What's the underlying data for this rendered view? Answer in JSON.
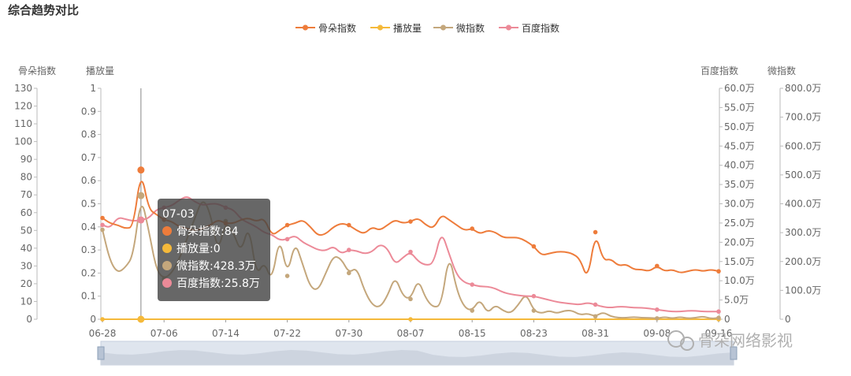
{
  "chart_data": {
    "type": "line",
    "title": "综合趋势对比",
    "legend": {
      "position": "top-center",
      "items": [
        {
          "name": "骨朵指数",
          "color": "#ee7c3b"
        },
        {
          "name": "播放量",
          "color": "#f5b93a"
        },
        {
          "name": "微指数",
          "color": "#c4a77c"
        },
        {
          "name": "百度指数",
          "color": "#ec8a98"
        }
      ]
    },
    "axes": {
      "gudu": {
        "label": "骨朵指数",
        "min": 0,
        "max": 130,
        "step": 10,
        "ticks": [
          "0",
          "10",
          "20",
          "30",
          "40",
          "50",
          "60",
          "70",
          "80",
          "90",
          "100",
          "110",
          "120",
          "130"
        ]
      },
      "play": {
        "label": "播放量",
        "min": 0,
        "max": 1,
        "ticks": [
          "0",
          "0.1",
          "0.2",
          "0.3",
          "0.4",
          "0.5",
          "0.6",
          "0.7",
          "0.8",
          "0.9",
          "1"
        ]
      },
      "baidu": {
        "label": "百度指数",
        "min": 0,
        "max": 600000,
        "ticks": [
          "0",
          "5.0万",
          "10.0万",
          "15.0万",
          "20.0万",
          "25.0万",
          "30.0万",
          "35.0万",
          "40.0万",
          "45.0万",
          "50.0万",
          "55.0万",
          "60.0万"
        ]
      },
      "weibo": {
        "label": "微指数",
        "min": 0,
        "max": 8000000,
        "ticks": [
          "0",
          "100.0万",
          "200.0万",
          "300.0万",
          "400.0万",
          "500.0万",
          "600.0万",
          "700.0万",
          "800.0万"
        ]
      }
    },
    "x_ticks": [
      "06-28",
      "07-06",
      "07-14",
      "07-22",
      "07-30",
      "08-07",
      "08-15",
      "08-23",
      "08-31",
      "09-08",
      "09-16"
    ],
    "x_start": "2017-06-28",
    "series": [
      {
        "name": "骨朵指数",
        "axis": "gudu",
        "color": "#ee7c3b",
        "values": [
          [
            0,
            57
          ],
          [
            1,
            54
          ],
          [
            2,
            53
          ],
          [
            3,
            51
          ],
          [
            4,
            52
          ],
          [
            5,
            84
          ],
          [
            6,
            62
          ],
          [
            7,
            59
          ],
          [
            8,
            56
          ],
          [
            9,
            55
          ],
          [
            10,
            52
          ],
          [
            11,
            51
          ],
          [
            12,
            50
          ],
          [
            13,
            51
          ],
          [
            14,
            53
          ],
          [
            15,
            56
          ],
          [
            16,
            54
          ],
          [
            17,
            54
          ],
          [
            18,
            56
          ],
          [
            19,
            57
          ],
          [
            20,
            55
          ],
          [
            21,
            57
          ],
          [
            22,
            47
          ],
          [
            23,
            50
          ],
          [
            24,
            53
          ],
          [
            25,
            54
          ],
          [
            26,
            56
          ],
          [
            27,
            52
          ],
          [
            28,
            47
          ],
          [
            29,
            48
          ],
          [
            30,
            52
          ],
          [
            31,
            54
          ],
          [
            32,
            53
          ],
          [
            33,
            50
          ],
          [
            34,
            48
          ],
          [
            35,
            52
          ],
          [
            36,
            50
          ],
          [
            37,
            53
          ],
          [
            38,
            56
          ],
          [
            39,
            54
          ],
          [
            40,
            55
          ],
          [
            41,
            57
          ],
          [
            42,
            53
          ],
          [
            43,
            51
          ],
          [
            44,
            59
          ],
          [
            45,
            56
          ],
          [
            46,
            53
          ],
          [
            47,
            50
          ],
          [
            48,
            51
          ],
          [
            49,
            48
          ],
          [
            50,
            50
          ],
          [
            51,
            49
          ],
          [
            52,
            46
          ],
          [
            53,
            46
          ],
          [
            54,
            46
          ],
          [
            55,
            44
          ],
          [
            56,
            41
          ],
          [
            57,
            36
          ],
          [
            58,
            37
          ],
          [
            59,
            38
          ],
          [
            60,
            38
          ],
          [
            61,
            37
          ],
          [
            62,
            34
          ],
          [
            63,
            22
          ],
          [
            64,
            49
          ],
          [
            65,
            33
          ],
          [
            66,
            34
          ],
          [
            67,
            30
          ],
          [
            68,
            31
          ],
          [
            69,
            28
          ],
          [
            70,
            28
          ],
          [
            71,
            27
          ],
          [
            72,
            30
          ],
          [
            73,
            27
          ],
          [
            74,
            28
          ],
          [
            75,
            26
          ],
          [
            76,
            27
          ],
          [
            77,
            28
          ],
          [
            78,
            27
          ],
          [
            79,
            28
          ],
          [
            80,
            27
          ]
        ]
      },
      {
        "name": "播放量",
        "axis": "play",
        "color": "#f5b93a",
        "values": [
          [
            0,
            0
          ],
          [
            5,
            0
          ],
          [
            10,
            0
          ],
          [
            20,
            0
          ],
          [
            30,
            0
          ],
          [
            40,
            0
          ],
          [
            50,
            0
          ],
          [
            60,
            0
          ],
          [
            70,
            0
          ],
          [
            80,
            0
          ]
        ]
      },
      {
        "name": "微指数",
        "axis": "weibo",
        "color": "#c4a77c",
        "values": [
          [
            0,
            3100000
          ],
          [
            1,
            2000000
          ],
          [
            2,
            1600000
          ],
          [
            3,
            1800000
          ],
          [
            4,
            2200000
          ],
          [
            5,
            4283000
          ],
          [
            6,
            3100000
          ],
          [
            7,
            1700000
          ],
          [
            8,
            1400000
          ],
          [
            9,
            1600000
          ],
          [
            10,
            2100000
          ],
          [
            11,
            2800000
          ],
          [
            12,
            3500000
          ],
          [
            13,
            4200000
          ],
          [
            14,
            3700000
          ],
          [
            15,
            2300000
          ],
          [
            16,
            3400000
          ],
          [
            17,
            3000000
          ],
          [
            18,
            2300000
          ],
          [
            19,
            3300000
          ],
          [
            20,
            1500000
          ],
          [
            21,
            2000000
          ],
          [
            22,
            1300000
          ],
          [
            23,
            2900000
          ],
          [
            24,
            1500000
          ],
          [
            25,
            2700000
          ],
          [
            26,
            1900000
          ],
          [
            27,
            1100000
          ],
          [
            28,
            1000000
          ],
          [
            29,
            1600000
          ],
          [
            30,
            2200000
          ],
          [
            31,
            2100000
          ],
          [
            32,
            1600000
          ],
          [
            33,
            1800000
          ],
          [
            34,
            1000000
          ],
          [
            35,
            500000
          ],
          [
            36,
            400000
          ],
          [
            37,
            800000
          ],
          [
            38,
            1500000
          ],
          [
            39,
            800000
          ],
          [
            40,
            700000
          ],
          [
            41,
            1400000
          ],
          [
            42,
            700000
          ],
          [
            43,
            400000
          ],
          [
            44,
            500000
          ],
          [
            45,
            2300000
          ],
          [
            46,
            1000000
          ],
          [
            47,
            400000
          ],
          [
            48,
            300000
          ],
          [
            49,
            700000
          ],
          [
            50,
            200000
          ],
          [
            51,
            500000
          ],
          [
            52,
            300000
          ],
          [
            53,
            200000
          ],
          [
            54,
            500000
          ],
          [
            55,
            900000
          ],
          [
            56,
            300000
          ],
          [
            57,
            200000
          ],
          [
            58,
            300000
          ],
          [
            59,
            200000
          ],
          [
            60,
            300000
          ],
          [
            61,
            300000
          ],
          [
            62,
            150000
          ],
          [
            63,
            200000
          ],
          [
            64,
            100000
          ],
          [
            65,
            250000
          ],
          [
            66,
            100000
          ],
          [
            67,
            50000
          ],
          [
            68,
            50000
          ],
          [
            69,
            80000
          ],
          [
            70,
            50000
          ],
          [
            71,
            50000
          ],
          [
            72,
            30000
          ],
          [
            73,
            80000
          ],
          [
            74,
            30000
          ],
          [
            75,
            80000
          ],
          [
            76,
            30000
          ],
          [
            77,
            50000
          ],
          [
            78,
            100000
          ],
          [
            79,
            20000
          ],
          [
            80,
            50000
          ]
        ]
      },
      {
        "name": "百度指数",
        "axis": "baidu",
        "color": "#ec8a98",
        "values": [
          [
            0,
            245000
          ],
          [
            1,
            237000
          ],
          [
            2,
            265000
          ],
          [
            3,
            260000
          ],
          [
            4,
            255000
          ],
          [
            5,
            258000
          ],
          [
            6,
            262000
          ],
          [
            7,
            285000
          ],
          [
            8,
            290000
          ],
          [
            9,
            295000
          ],
          [
            10,
            310000
          ],
          [
            11,
            320000
          ],
          [
            12,
            305000
          ],
          [
            13,
            296000
          ],
          [
            14,
            300000
          ],
          [
            15,
            300000
          ],
          [
            16,
            290000
          ],
          [
            17,
            285000
          ],
          [
            18,
            260000
          ],
          [
            19,
            250000
          ],
          [
            20,
            240000
          ],
          [
            21,
            225000
          ],
          [
            22,
            220000
          ],
          [
            23,
            205000
          ],
          [
            24,
            208000
          ],
          [
            25,
            218000
          ],
          [
            26,
            200000
          ],
          [
            27,
            190000
          ],
          [
            28,
            180000
          ],
          [
            29,
            178000
          ],
          [
            30,
            190000
          ],
          [
            31,
            170000
          ],
          [
            32,
            180000
          ],
          [
            33,
            178000
          ],
          [
            34,
            170000
          ],
          [
            35,
            175000
          ],
          [
            36,
            195000
          ],
          [
            37,
            185000
          ],
          [
            38,
            142000
          ],
          [
            39,
            160000
          ],
          [
            40,
            175000
          ],
          [
            41,
            150000
          ],
          [
            42,
            140000
          ],
          [
            43,
            145000
          ],
          [
            44,
            230000
          ],
          [
            45,
            170000
          ],
          [
            46,
            115000
          ],
          [
            47,
            95000
          ],
          [
            48,
            90000
          ],
          [
            49,
            85000
          ],
          [
            50,
            85000
          ],
          [
            51,
            80000
          ],
          [
            52,
            70000
          ],
          [
            53,
            65000
          ],
          [
            54,
            62000
          ],
          [
            55,
            60000
          ],
          [
            56,
            60000
          ],
          [
            57,
            55000
          ],
          [
            58,
            50000
          ],
          [
            59,
            45000
          ],
          [
            60,
            42000
          ],
          [
            61,
            40000
          ],
          [
            62,
            38000
          ],
          [
            63,
            43000
          ],
          [
            64,
            38000
          ],
          [
            65,
            32000
          ],
          [
            66,
            30000
          ],
          [
            67,
            33000
          ],
          [
            68,
            32000
          ],
          [
            69,
            30000
          ],
          [
            70,
            30000
          ],
          [
            71,
            28000
          ],
          [
            72,
            25000
          ],
          [
            73,
            22000
          ],
          [
            74,
            20000
          ],
          [
            75,
            20000
          ],
          [
            76,
            22000
          ],
          [
            77,
            22000
          ],
          [
            78,
            20000
          ],
          [
            79,
            20000
          ],
          [
            80,
            20000
          ]
        ]
      }
    ],
    "tooltip": {
      "date": "07-03",
      "rows": [
        {
          "label": "骨朵指数:84",
          "color": "#ee7c3b"
        },
        {
          "label": "播放量:0",
          "color": "#f5b93a"
        },
        {
          "label": "微指数:428.3万",
          "color": "#c4a77c"
        },
        {
          "label": "百度指数:25.8万",
          "color": "#ec8a98"
        }
      ]
    }
  },
  "watermark": "骨朵网络影视"
}
